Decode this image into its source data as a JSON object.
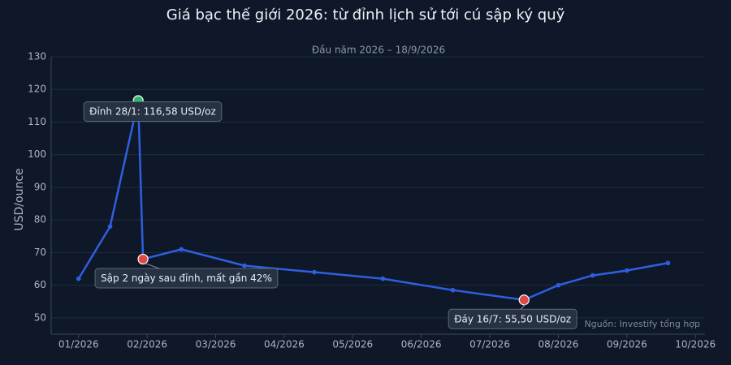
{
  "chart_data": {
    "type": "line",
    "title": "Giá bạc thế giới 2026: từ đỉnh lịch sử tới cú sập ký quỹ",
    "subtitle": "Đầu năm 2026 – 18/9/2026",
    "y_label": "USD/ounce",
    "source": "Nguồn: Investify tổng hợp",
    "x": [
      1.0,
      1.46,
      1.87,
      1.94,
      2.5,
      3.42,
      4.44,
      5.44,
      6.46,
      7.5,
      8.0,
      8.5,
      9.0,
      9.6
    ],
    "series": [
      {
        "name": "Giá bạc",
        "color": "#2f5fe0",
        "values": [
          62,
          78,
          116.58,
          68,
          71,
          66,
          64,
          62,
          58.5,
          55.5,
          60,
          63,
          64.5,
          66.8
        ]
      }
    ],
    "xlim": [
      0.6,
      10.14
    ],
    "xticks": [
      {
        "value": 1,
        "label": "01/2026"
      },
      {
        "value": 2,
        "label": "02/2026"
      },
      {
        "value": 3,
        "label": "03/2026"
      },
      {
        "value": 4,
        "label": "04/2026"
      },
      {
        "value": 5,
        "label": "05/2026"
      },
      {
        "value": 6,
        "label": "06/2026"
      },
      {
        "value": 7,
        "label": "07/2026"
      },
      {
        "value": 8,
        "label": "08/2026"
      },
      {
        "value": 9,
        "label": "09/2026"
      },
      {
        "value": 10,
        "label": "10/2026"
      }
    ],
    "ylim": [
      45,
      130
    ],
    "yticks": [
      50,
      60,
      70,
      80,
      90,
      100,
      110,
      120,
      130
    ],
    "grid": true,
    "annotations": [
      "Đỉnh 28/1: 116,58 USD/oz",
      "Sập 2 ngày sau đỉnh, mất gần 42%",
      "Đáy 16/7: 55,50 USD/oz"
    ]
  }
}
